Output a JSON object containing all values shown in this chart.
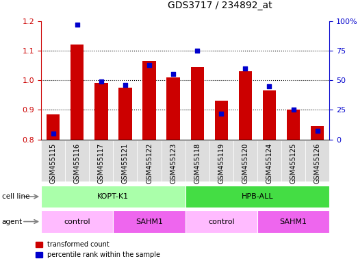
{
  "title": "GDS3717 / 234892_at",
  "samples": [
    "GSM455115",
    "GSM455116",
    "GSM455117",
    "GSM455121",
    "GSM455122",
    "GSM455123",
    "GSM455118",
    "GSM455119",
    "GSM455120",
    "GSM455124",
    "GSM455125",
    "GSM455126"
  ],
  "red_values": [
    0.885,
    1.12,
    0.99,
    0.975,
    1.065,
    1.01,
    1.045,
    0.93,
    1.03,
    0.965,
    0.9,
    0.845
  ],
  "blue_values": [
    5,
    97,
    49,
    46,
    63,
    55,
    75,
    22,
    60,
    45,
    25,
    7
  ],
  "ylim_left": [
    0.8,
    1.2
  ],
  "ylim_right": [
    0,
    100
  ],
  "yticks_left": [
    0.8,
    0.9,
    1.0,
    1.1,
    1.2
  ],
  "yticks_right": [
    0,
    25,
    50,
    75,
    100
  ],
  "ytick_labels_right": [
    "0",
    "25",
    "50",
    "75",
    "100%"
  ],
  "red_color": "#cc0000",
  "blue_color": "#0000cc",
  "bar_base": 0.8,
  "cell_line_groups": [
    {
      "label": "KOPT-K1",
      "start": 0,
      "end": 6,
      "color": "#aaffaa"
    },
    {
      "label": "HPB-ALL",
      "start": 6,
      "end": 12,
      "color": "#44dd44"
    }
  ],
  "agent_groups": [
    {
      "label": "control",
      "start": 0,
      "end": 3,
      "color": "#ffbbff"
    },
    {
      "label": "SAHM1",
      "start": 3,
      "end": 6,
      "color": "#ee66ee"
    },
    {
      "label": "control",
      "start": 6,
      "end": 9,
      "color": "#ffbbff"
    },
    {
      "label": "SAHM1",
      "start": 9,
      "end": 12,
      "color": "#ee66ee"
    }
  ],
  "legend_red_label": "transformed count",
  "legend_blue_label": "percentile rank within the sample",
  "cell_line_label": "cell line",
  "agent_label": "agent",
  "tick_bg_color": "#dddddd",
  "plot_bg": "#ffffff"
}
